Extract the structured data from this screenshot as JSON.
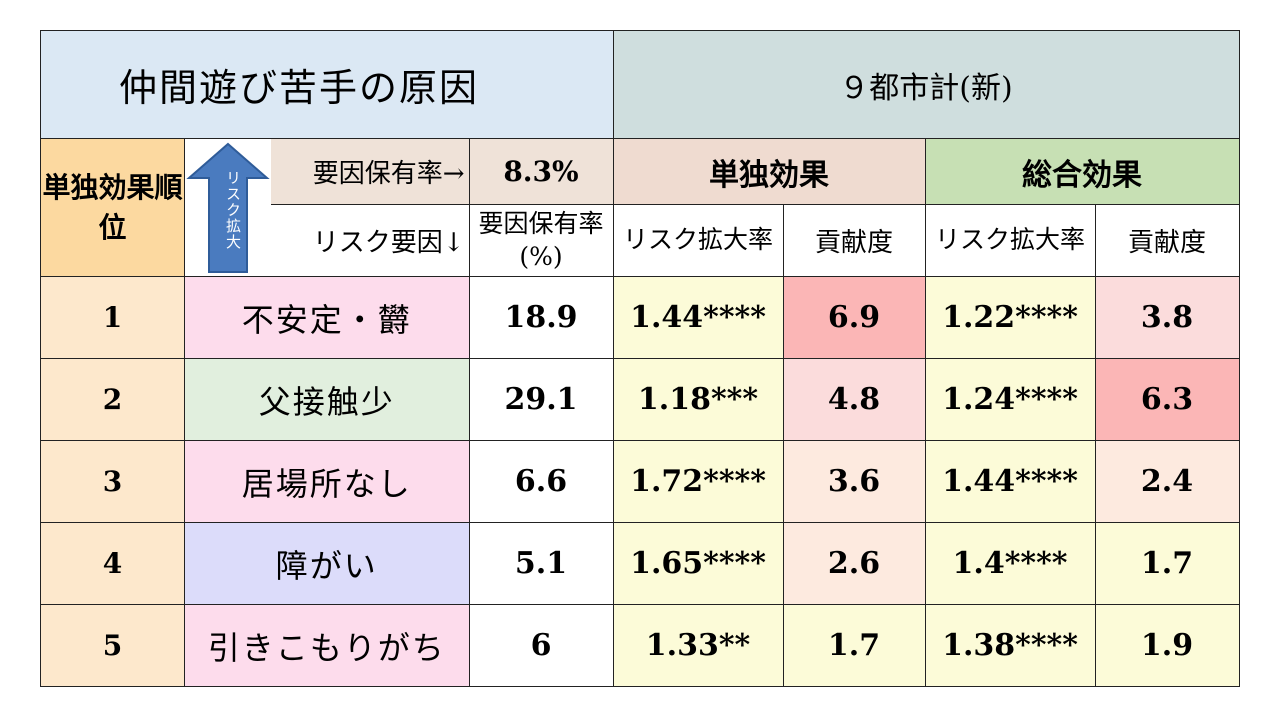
{
  "title": "仲間遊び苦手の原因",
  "region": "９都市計(新)",
  "header": {
    "rank_label": "単独効果順位",
    "arrow_label": "リスク拡大",
    "factor_rate_label": "要因保有率→",
    "factor_rate_value": "8.3%",
    "risk_factor_label": "リスク要因↓",
    "factor_rate_col": "要因保有率(%)",
    "single_effect": "単独効果",
    "total_effect": "総合効果",
    "risk_expansion": "リスク拡大率",
    "contribution": "貢献度"
  },
  "rows": [
    {
      "rank": "1",
      "factor": "不安定・欝",
      "rate": "18.9",
      "single_risk": "1.44****",
      "single_contrib": "6.9",
      "total_risk": "1.22****",
      "total_contrib": "3.8"
    },
    {
      "rank": "2",
      "factor": "父接触少",
      "rate": "29.1",
      "single_risk": "1.18***",
      "single_contrib": "4.8",
      "total_risk": "1.24****",
      "total_contrib": "6.3"
    },
    {
      "rank": "3",
      "factor": "居場所なし",
      "rate": "6.6",
      "single_risk": "1.72****",
      "single_contrib": "3.6",
      "total_risk": "1.44****",
      "total_contrib": "2.4"
    },
    {
      "rank": "4",
      "factor": "障がい",
      "rate": "5.1",
      "single_risk": "1.65****",
      "single_contrib": "2.6",
      "total_risk": "1.4****",
      "total_contrib": "1.7"
    },
    {
      "rank": "5",
      "factor": "引きこもりがち",
      "rate": "6",
      "single_risk": "1.33**",
      "single_contrib": "1.7",
      "total_risk": "1.38****",
      "total_contrib": "1.9"
    }
  ],
  "colors": {
    "arrow": "#4a7bbf",
    "title_left_bg": "#dbe8f4",
    "title_right_bg": "#cfdede",
    "rank_header_bg": "#fcd9a0",
    "single_effect_bg": "#efdbd0",
    "total_effect_bg": "#c7e0b4"
  }
}
